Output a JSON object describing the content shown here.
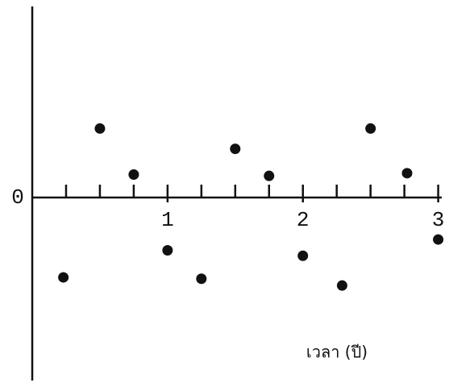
{
  "chart_data": {
    "type": "scatter",
    "x_label": "เวลา (ปี)",
    "x": [
      0.23,
      0.5,
      0.75,
      1,
      1.25,
      1.5,
      1.75,
      2,
      2.29,
      2.5,
      2.77,
      3
    ],
    "values": [
      -0.59,
      0.51,
      0.17,
      -0.39,
      -0.6,
      0.36,
      0.16,
      -0.43,
      -0.65,
      0.51,
      0.18,
      -0.31
    ],
    "color": "#111111",
    "xlim": [
      0,
      3.05
    ],
    "ylim": [
      -1.34,
      1.4
    ],
    "xticks": [
      1,
      2,
      3
    ],
    "xticks_minor": [
      0.25,
      0.5,
      0.75,
      1.25,
      1.5,
      1.75,
      2.25,
      2.5,
      2.75
    ],
    "yticks": [
      0
    ]
  }
}
